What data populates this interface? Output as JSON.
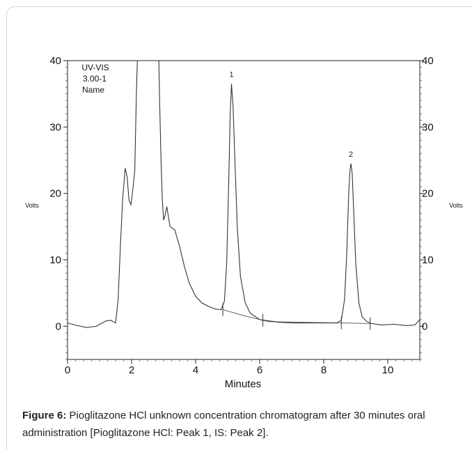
{
  "chart_data": {
    "type": "line",
    "title": "",
    "xlabel": "Minutes",
    "ylabel": "Volts",
    "ylabel_right": "Volts",
    "xlim": [
      0,
      11
    ],
    "ylim": [
      -5,
      40
    ],
    "x_ticks": [
      0,
      2,
      4,
      6,
      8,
      10
    ],
    "y_ticks": [
      0,
      10,
      20,
      30,
      40
    ],
    "grid": false,
    "annotation_lines": [
      "UV-VIS",
      "3.00-1",
      "Name"
    ],
    "peaks": [
      {
        "label": "1",
        "x": 5.12,
        "y": 36.5
      },
      {
        "label": "2",
        "x": 8.85,
        "y": 24.5
      }
    ],
    "integration_markers": [
      4.85,
      6.1,
      8.55,
      9.45
    ],
    "series": [
      {
        "x": [
          0,
          0.3,
          0.6,
          0.9,
          1.2,
          1.35,
          1.5,
          1.58,
          1.65,
          1.72,
          1.8,
          1.86,
          1.92,
          1.98,
          2.05,
          2.1,
          2.15,
          2.18,
          2.2,
          2.85,
          2.88,
          2.92,
          2.96,
          3.0,
          3.05,
          3.1,
          3.15,
          3.2,
          3.35,
          3.5,
          3.65,
          3.8,
          4.0,
          4.2,
          4.4,
          4.6,
          4.8,
          4.9,
          4.97,
          5.03,
          5.08,
          5.12,
          5.17,
          5.22,
          5.3,
          5.4,
          5.55,
          5.7,
          5.85,
          6.0,
          6.3,
          6.6,
          7.0,
          7.5,
          8.0,
          8.4,
          8.55,
          8.65,
          8.72,
          8.78,
          8.82,
          8.85,
          8.89,
          8.94,
          9.0,
          9.1,
          9.2,
          9.35,
          9.5,
          9.8,
          10.2,
          10.6,
          10.85,
          11.0
        ],
        "y": [
          0.5,
          0.1,
          -0.2,
          0.0,
          0.8,
          0.9,
          0.5,
          4.0,
          12.0,
          19.0,
          23.8,
          22.5,
          19.0,
          18.3,
          21.0,
          23.5,
          35.0,
          40.0,
          40.0,
          40.0,
          33.0,
          25.0,
          19.0,
          16.0,
          16.8,
          18.0,
          16.5,
          15.0,
          14.5,
          12.0,
          9.0,
          6.5,
          4.5,
          3.5,
          3.0,
          2.6,
          2.5,
          3.8,
          9.5,
          21.0,
          32.0,
          36.5,
          33.0,
          26.0,
          15.0,
          7.5,
          3.5,
          2.0,
          1.5,
          1.0,
          0.8,
          0.6,
          0.5,
          0.5,
          0.5,
          0.5,
          0.9,
          4.0,
          11.0,
          20.0,
          23.5,
          24.5,
          23.0,
          17.0,
          9.5,
          3.5,
          1.4,
          0.7,
          0.4,
          0.2,
          0.3,
          0.1,
          0.2,
          1.0
        ]
      }
    ],
    "baseline": {
      "x": [
        4.85,
        5.5,
        6.1,
        6.3,
        8.55,
        9.45
      ],
      "y": [
        2.5,
        1.6,
        0.9,
        0.7,
        0.5,
        0.4
      ]
    }
  },
  "caption": {
    "label": "Figure 6:",
    "text": " Pioglitazone HCl unknown concentration chromatogram after 30 minutes oral administration [Pioglitazone HCl: Peak 1, IS: Peak 2]."
  }
}
